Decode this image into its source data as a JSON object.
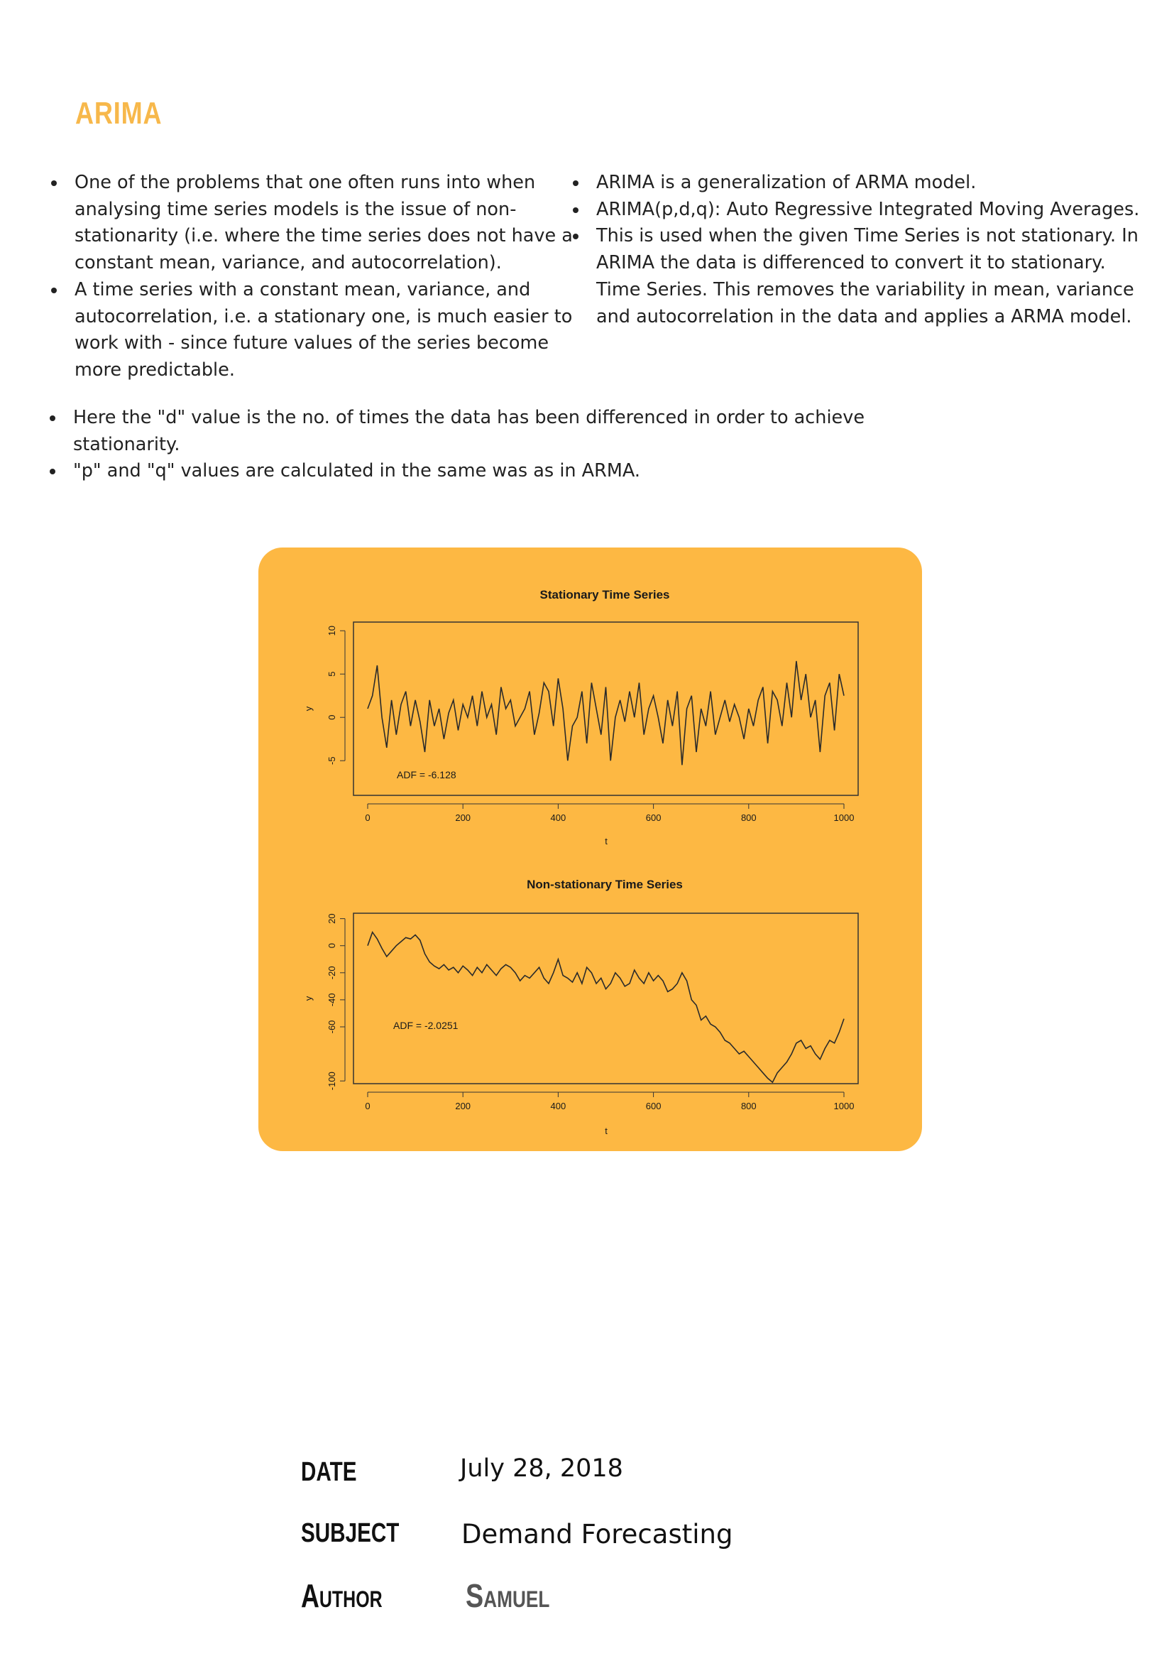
{
  "heading": "ARIMA",
  "bullets_left": [
    "One of the problems that one often runs into when analysing time series models is the issue of non-stationarity (i.e. where the time series does not have a constant mean, variance, and autocorrelation).",
    "A time series with a constant mean, variance, and autocorrelation, i.e. a stationary one, is much easier to work with - since future values of the series become more predictable."
  ],
  "bullets_right": [
    "ARIMA is a generalization of ARMA model.",
    "ARIMA(p,d,q): Auto Regressive Integrated Moving Averages.",
    "This is used when the given Time Series is not stationary. In ARIMA the data is differenced to convert it to stationary. Time Series. This removes the variability in mean, variance and autocorrelation in the data and applies a ARMA model."
  ],
  "bullets_full": [
    "Here the \"d\" value is the no. of times the data has been differenced in order to achieve stationarity.",
    "\"p\" and \"q\" values are calculated in the same was as in ARMA."
  ],
  "chart_data": [
    {
      "type": "line",
      "title": "Stationary Time Series",
      "xlabel": "t",
      "ylabel": "y",
      "xlim": [
        0,
        1000
      ],
      "ylim": [
        -9,
        11
      ],
      "xticks": [
        0,
        200,
        400,
        600,
        800,
        1000
      ],
      "yticks": [
        -5,
        0,
        5,
        10
      ],
      "annotation": "ADF = -6.128",
      "x": [
        0,
        10,
        20,
        30,
        40,
        50,
        60,
        70,
        80,
        90,
        100,
        110,
        120,
        130,
        140,
        150,
        160,
        170,
        180,
        190,
        200,
        210,
        220,
        230,
        240,
        250,
        260,
        270,
        280,
        290,
        300,
        310,
        320,
        330,
        340,
        350,
        360,
        370,
        380,
        390,
        400,
        410,
        420,
        430,
        440,
        450,
        460,
        470,
        480,
        490,
        500,
        510,
        520,
        530,
        540,
        550,
        560,
        570,
        580,
        590,
        600,
        610,
        620,
        630,
        640,
        650,
        660,
        670,
        680,
        690,
        700,
        710,
        720,
        730,
        740,
        750,
        760,
        770,
        780,
        790,
        800,
        810,
        820,
        830,
        840,
        850,
        860,
        870,
        880,
        890,
        900,
        910,
        920,
        930,
        940,
        950,
        960,
        970,
        980,
        990,
        1000
      ],
      "values": [
        1,
        2.5,
        6,
        0,
        -3.5,
        2,
        -2,
        1.5,
        3,
        -1,
        2,
        -0.5,
        -4,
        2,
        -1,
        1,
        -2.5,
        0.5,
        2,
        -1.5,
        1.5,
        0,
        2.5,
        -1,
        3,
        0,
        1.5,
        -2,
        3.5,
        1,
        2,
        -1,
        0,
        1,
        3,
        -2,
        0.5,
        4,
        3,
        -1,
        4.5,
        1,
        -5,
        -1,
        0,
        3,
        -3,
        4,
        1,
        -2,
        3.5,
        -5,
        0,
        2,
        -0.5,
        3,
        0,
        4,
        -2,
        1,
        2.5,
        0,
        -3,
        2,
        -1,
        3,
        -5.5,
        1,
        2.5,
        -4,
        1,
        -1,
        3,
        -2,
        0,
        2,
        -0.5,
        1.5,
        0,
        -2.5,
        1,
        -1,
        2,
        3.5,
        -3,
        3,
        2,
        -1,
        4,
        0,
        6.5,
        2,
        5,
        0,
        2,
        -4,
        2.5,
        4,
        -1.5,
        5,
        2.5
      ]
    },
    {
      "type": "line",
      "title": "Non-stationary Time Series",
      "xlabel": "t",
      "ylabel": "y",
      "xlim": [
        0,
        1000
      ],
      "ylim": [
        -102,
        24
      ],
      "xticks": [
        0,
        200,
        400,
        600,
        800,
        1000
      ],
      "yticks": [
        -100,
        -60,
        -40,
        -20,
        0,
        20
      ],
      "annotation": "ADF = -2.0251",
      "x": [
        0,
        10,
        20,
        30,
        40,
        50,
        60,
        70,
        80,
        90,
        100,
        110,
        120,
        130,
        140,
        150,
        160,
        170,
        180,
        190,
        200,
        210,
        220,
        230,
        240,
        250,
        260,
        270,
        280,
        290,
        300,
        310,
        320,
        330,
        340,
        350,
        360,
        370,
        380,
        390,
        400,
        410,
        420,
        430,
        440,
        450,
        460,
        470,
        480,
        490,
        500,
        510,
        520,
        530,
        540,
        550,
        560,
        570,
        580,
        590,
        600,
        610,
        620,
        630,
        640,
        650,
        660,
        670,
        680,
        690,
        700,
        710,
        720,
        730,
        740,
        750,
        760,
        770,
        780,
        790,
        800,
        810,
        820,
        830,
        840,
        850,
        860,
        870,
        880,
        890,
        900,
        910,
        920,
        930,
        940,
        950,
        960,
        970,
        980,
        990,
        1000
      ],
      "values": [
        0,
        10,
        5,
        -2,
        -8,
        -4,
        0,
        3,
        6,
        5,
        8,
        4,
        -6,
        -12,
        -15,
        -17,
        -14,
        -18,
        -16,
        -20,
        -15,
        -18,
        -22,
        -16,
        -20,
        -14,
        -18,
        -22,
        -17,
        -14,
        -16,
        -20,
        -26,
        -22,
        -24,
        -20,
        -16,
        -24,
        -28,
        -20,
        -10,
        -22,
        -24,
        -27,
        -20,
        -28,
        -16,
        -20,
        -28,
        -24,
        -32,
        -28,
        -20,
        -24,
        -30,
        -28,
        -18,
        -24,
        -28,
        -20,
        -26,
        -22,
        -26,
        -34,
        -32,
        -28,
        -20,
        -26,
        -40,
        -44,
        -55,
        -52,
        -58,
        -60,
        -64,
        -70,
        -72,
        -76,
        -80,
        -78,
        -82,
        -86,
        -90,
        -94,
        -98,
        -101,
        -94,
        -90,
        -86,
        -80,
        -72,
        -70,
        -76,
        -74,
        -80,
        -84,
        -76,
        -70,
        -72,
        -64,
        -54
      ]
    }
  ],
  "meta": {
    "date_label": "DATE",
    "date_value": "July 28, 2018",
    "subject_label": "SUBJECT",
    "subject_value": "Demand Forecasting",
    "author_label": "Author",
    "author_value": "Samuel"
  },
  "colors": {
    "accent": "#F7B84B",
    "figure_background": "#FDB843"
  }
}
